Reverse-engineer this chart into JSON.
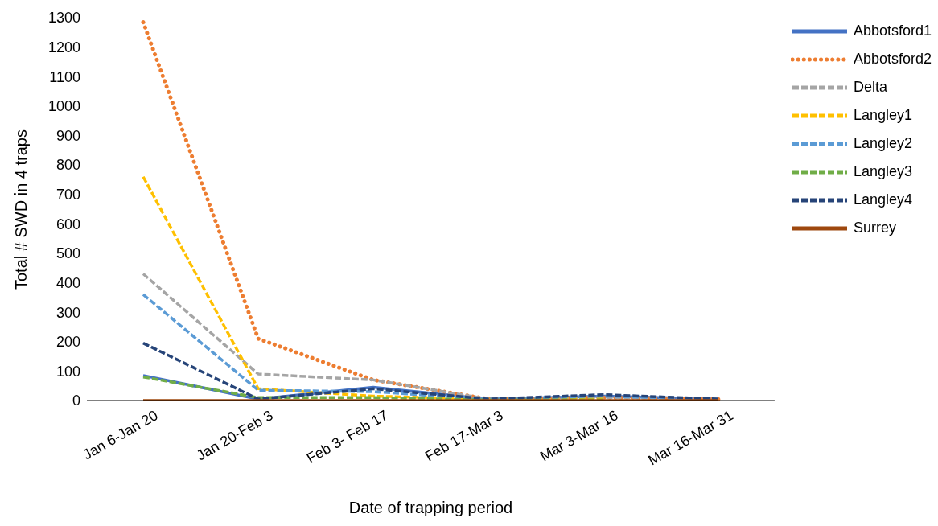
{
  "chart_data": {
    "type": "line",
    "xlabel": "Date of trapping period",
    "ylabel": "Total # SWD in 4 traps",
    "categories": [
      "Jan 6-Jan 20",
      "Jan 20-Feb 3",
      "Feb 3- Feb 17",
      "Feb 17-Mar 3",
      "Mar 3-Mar 16",
      "Mar 16-Mar 31"
    ],
    "series": [
      {
        "name": "Abbotsford1",
        "color": "#4472c4",
        "line_style": "solid",
        "values": [
          85,
          5,
          45,
          5,
          15,
          5
        ]
      },
      {
        "name": "Abbotsford2",
        "color": "#ed7d31",
        "line_style": "dotted",
        "values": [
          1285,
          210,
          70,
          5,
          10,
          5
        ]
      },
      {
        "name": "Delta",
        "color": "#a5a5a5",
        "line_style": "dashed",
        "values": [
          430,
          90,
          70,
          5,
          10,
          5
        ]
      },
      {
        "name": "Langley1",
        "color": "#ffc000",
        "line_style": "dashed",
        "values": [
          760,
          40,
          15,
          5,
          10,
          null
        ]
      },
      {
        "name": "Langley2",
        "color": "#5b9bd5",
        "line_style": "dashed",
        "values": [
          360,
          35,
          30,
          5,
          15,
          5
        ]
      },
      {
        "name": "Langley3",
        "color": "#70ad47",
        "line_style": "dashed",
        "values": [
          80,
          10,
          10,
          2,
          2,
          null
        ]
      },
      {
        "name": "Langley4",
        "color": "#264478",
        "line_style": "dashed",
        "values": [
          195,
          5,
          40,
          5,
          20,
          5
        ]
      },
      {
        "name": "Surrey",
        "color": "#9e480e",
        "line_style": "solid",
        "values": [
          0,
          0,
          0,
          0,
          0,
          0
        ]
      }
    ],
    "ylim": [
      0,
      1300
    ],
    "yticks": [
      0,
      100,
      200,
      300,
      400,
      500,
      600,
      700,
      800,
      900,
      1000,
      1100,
      1200,
      1300
    ],
    "grid": false,
    "legend": "right",
    "marker": "none"
  }
}
